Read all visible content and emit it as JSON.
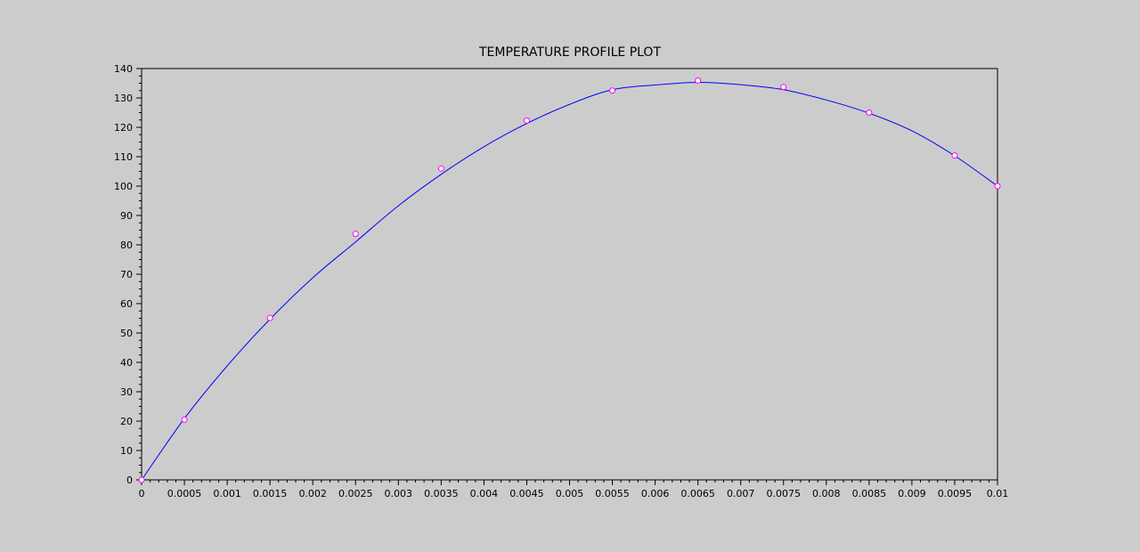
{
  "chart_data": {
    "type": "line",
    "title": "TEMPERATURE PROFILE PLOT",
    "xlabel": "",
    "ylabel": "",
    "xlim": [
      0,
      0.01
    ],
    "ylim": [
      0,
      140
    ],
    "x_ticks": [
      "0",
      "0.0005",
      "0.001",
      "0.0015",
      "0.002",
      "0.0025",
      "0.003",
      "0.0035",
      "0.004",
      "0.0045",
      "0.005",
      "0.0055",
      "0.006",
      "0.0065",
      "0.007",
      "0.0075",
      "0.008",
      "0.0085",
      "0.009",
      "0.0095",
      "0.01"
    ],
    "y_ticks": [
      "0",
      "10",
      "20",
      "30",
      "40",
      "50",
      "60",
      "70",
      "80",
      "90",
      "100",
      "110",
      "120",
      "130",
      "140"
    ],
    "grid": false,
    "series": [
      {
        "kind": "line",
        "color": "#0000ff",
        "x": [
          0,
          0.0005,
          0.001,
          0.0015,
          0.002,
          0.0025,
          0.003,
          0.0035,
          0.004,
          0.0045,
          0.005,
          0.0055,
          0.006,
          0.0065,
          0.007,
          0.0075,
          0.008,
          0.0085,
          0.009,
          0.0095,
          0.01
        ],
        "values": [
          0,
          20.9,
          38.8,
          54.7,
          68.8,
          81.0,
          93.3,
          104.0,
          113.4,
          121.3,
          127.8,
          132.8,
          134.4,
          135.3,
          134.5,
          132.8,
          129.3,
          124.8,
          118.8,
          110.3,
          100.0
        ]
      },
      {
        "kind": "scatter",
        "marker": "circle",
        "color": "#ff00ff",
        "x": [
          0,
          0.0005,
          0.0015,
          0.0025,
          0.0035,
          0.0045,
          0.0055,
          0.0065,
          0.0075,
          0.0085,
          0.0095,
          0.01
        ],
        "values": [
          0,
          20.5,
          55.1,
          83.7,
          106.0,
          122.3,
          132.5,
          135.9,
          133.7,
          125.0,
          110.4,
          100.0
        ]
      }
    ]
  }
}
